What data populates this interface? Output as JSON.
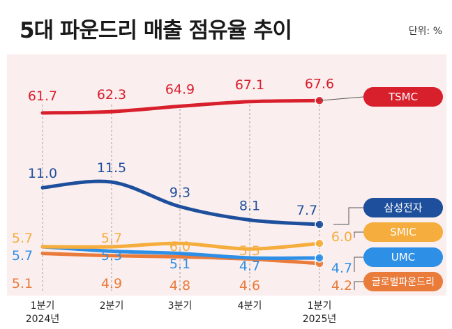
{
  "title": "5대 파운드리 매출 점유율 추이",
  "unit": "단위: %",
  "chart_data": {
    "type": "line",
    "categories": [
      [
        "1분기",
        "2024년"
      ],
      [
        "2분기",
        ""
      ],
      [
        "3분기",
        ""
      ],
      [
        "4분기",
        ""
      ],
      [
        "1분기",
        "2025년"
      ]
    ],
    "series": [
      {
        "name": "TSMC",
        "values": [
          61.7,
          62.3,
          64.9,
          67.1,
          67.6
        ],
        "color": "#d81f2c"
      },
      {
        "name": "삼성전자",
        "values": [
          11.0,
          11.5,
          9.3,
          8.1,
          7.7
        ],
        "color": "#1d4f9c"
      },
      {
        "name": "SMIC",
        "values": [
          5.7,
          5.7,
          6.0,
          5.5,
          6.0
        ],
        "color": "#f5ad3d"
      },
      {
        "name": "UMC",
        "values": [
          5.7,
          5.3,
          5.1,
          4.7,
          4.7
        ],
        "color": "#2e8fe6"
      },
      {
        "name": "글로벌파운드리",
        "values": [
          5.1,
          4.9,
          4.8,
          4.6,
          4.2
        ],
        "color": "#e97b3b"
      }
    ],
    "value_labels": [
      [
        "61.7",
        "62.3",
        "64.9",
        "67.1",
        "67.6"
      ],
      [
        "11.0",
        "11.5",
        "9.3",
        "8.1",
        "7.7"
      ],
      [
        "5.7",
        "5.7",
        "6.0",
        "5.5",
        "6.0"
      ],
      [
        "5.7",
        "5.3",
        "5.1",
        "4.7",
        "4.7"
      ],
      [
        "5.1",
        "4.9",
        "4.8",
        "4.6",
        "4.2"
      ]
    ],
    "grid": "vertical-dashed",
    "legend": "right"
  }
}
